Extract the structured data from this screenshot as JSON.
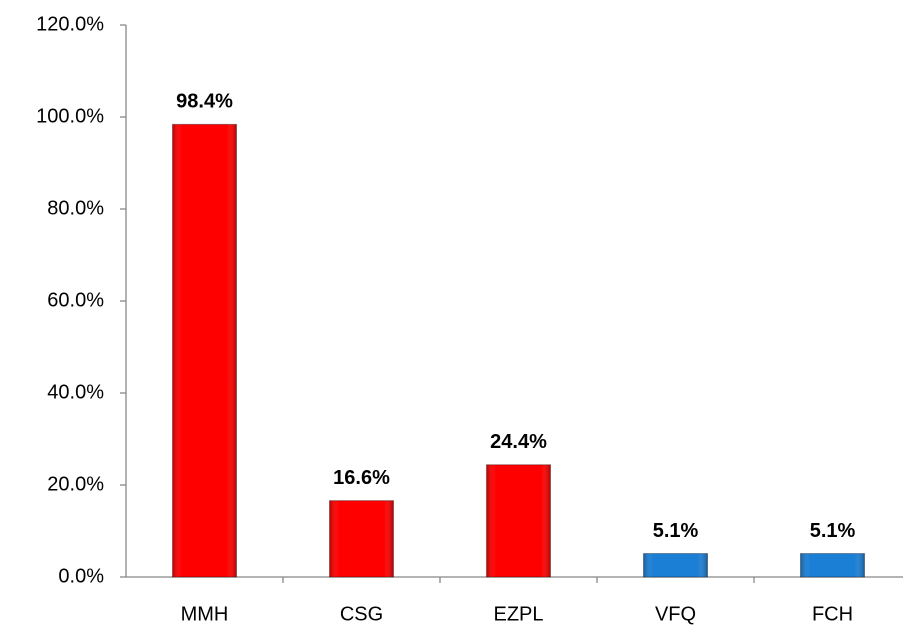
{
  "chart_data": {
    "type": "bar",
    "categories": [
      "MMH",
      "CSG",
      "EZPL",
      "VFQ",
      "FCH"
    ],
    "values": [
      98.4,
      16.6,
      24.4,
      5.1,
      5.1
    ],
    "value_labels": [
      "98.4%",
      "16.6%",
      "24.4%",
      "5.1%",
      "5.1%"
    ],
    "colors": [
      "#ff0000",
      "#ff0000",
      "#ff0000",
      "#1c7fd6",
      "#1c7fd6"
    ],
    "ylim": [
      0,
      120
    ],
    "yticks": [
      {
        "value": 0,
        "label": "0.0%"
      },
      {
        "value": 20,
        "label": "20.0%"
      },
      {
        "value": 40,
        "label": "40.0%"
      },
      {
        "value": 60,
        "label": "60.0%"
      },
      {
        "value": 80,
        "label": "80.0%"
      },
      {
        "value": 100,
        "label": "100.0%"
      },
      {
        "value": 120,
        "label": "120.0%"
      }
    ],
    "grid": false
  }
}
